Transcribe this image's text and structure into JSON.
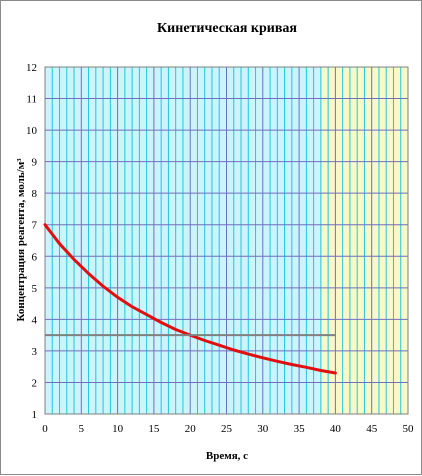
{
  "chart_data": {
    "type": "line",
    "title": "Кинетическая кривая",
    "xlabel": "Время, с",
    "ylabel": "Концентрация реагента, моль/м³",
    "xlim": [
      0,
      50
    ],
    "ylim": [
      1,
      12
    ],
    "xticks": [
      "0",
      "5",
      "10",
      "15",
      "20",
      "25",
      "30",
      "35",
      "40",
      "45",
      "50"
    ],
    "yticks": [
      "1",
      "2",
      "3",
      "4",
      "5",
      "6",
      "7",
      "8",
      "9",
      "10",
      "11",
      "12"
    ],
    "grid": true,
    "grid_minor_x_step": 1,
    "colors": {
      "plot_background": "#F8F8C8",
      "shaded_band": "#CCF4FC",
      "grid_major": "#7070C0",
      "grid_minor": "#20C8D8",
      "curve": "#E01010",
      "reference_line": "#808080"
    },
    "shaded_x_range": [
      0,
      38
    ],
    "series": [
      {
        "kind": "curve",
        "x": [
          0,
          2,
          4,
          6,
          8,
          10,
          12,
          14,
          16,
          18,
          20,
          22,
          24,
          26,
          28,
          30,
          32,
          34,
          36,
          38,
          40
        ],
        "y": [
          7.0,
          6.4,
          5.9,
          5.45,
          5.05,
          4.7,
          4.4,
          4.15,
          3.9,
          3.68,
          3.5,
          3.33,
          3.18,
          3.03,
          2.9,
          2.78,
          2.67,
          2.57,
          2.48,
          2.38,
          2.3
        ]
      },
      {
        "kind": "reference",
        "x": [
          0,
          40
        ],
        "y": [
          3.5,
          3.5
        ]
      }
    ]
  }
}
